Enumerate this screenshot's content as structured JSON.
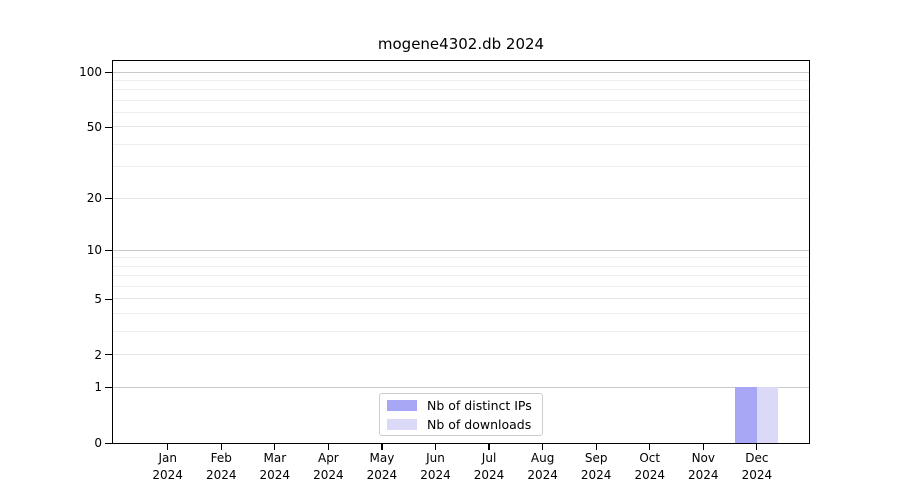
{
  "chart_data": {
    "type": "bar",
    "title": "mogene4302.db 2024",
    "categories": [
      "Jan 2024",
      "Feb 2024",
      "Mar 2024",
      "Apr 2024",
      "May 2024",
      "Jun 2024",
      "Jul 2024",
      "Aug 2024",
      "Sep 2024",
      "Oct 2024",
      "Nov 2024",
      "Dec 2024"
    ],
    "month_labels": [
      "Jan",
      "Feb",
      "Mar",
      "Apr",
      "May",
      "Jun",
      "Jul",
      "Aug",
      "Sep",
      "Oct",
      "Nov",
      "Dec"
    ],
    "year_label": "2024",
    "series": [
      {
        "name": "Nb of distinct IPs",
        "color": "#a7a7f5",
        "values": [
          0,
          0,
          0,
          0,
          0,
          0,
          0,
          0,
          0,
          0,
          0,
          1
        ]
      },
      {
        "name": "Nb of downloads",
        "color": "#dadaf8",
        "values": [
          0,
          0,
          0,
          0,
          0,
          0,
          0,
          0,
          0,
          0,
          0,
          1
        ]
      }
    ],
    "xlabel": "",
    "ylabel": "",
    "yscale": "log1p",
    "ylim": [
      0,
      100
    ],
    "yticks": [
      0,
      1,
      2,
      5,
      10,
      20,
      50,
      100
    ],
    "gridlines": {
      "decade_values": [
        1,
        10,
        100
      ],
      "labeled_minor_values": [
        2,
        5,
        20,
        50
      ],
      "minor_values": [
        3,
        4,
        6,
        7,
        8,
        9,
        30,
        40,
        60,
        70,
        80,
        90
      ]
    },
    "grid_colors": {
      "decade": "#c9c9c9",
      "labeled_minor": "#e4e4e4",
      "minor": "#efefef"
    },
    "legend_position": "bottom-center",
    "legend_border_color": "#cccccc"
  }
}
